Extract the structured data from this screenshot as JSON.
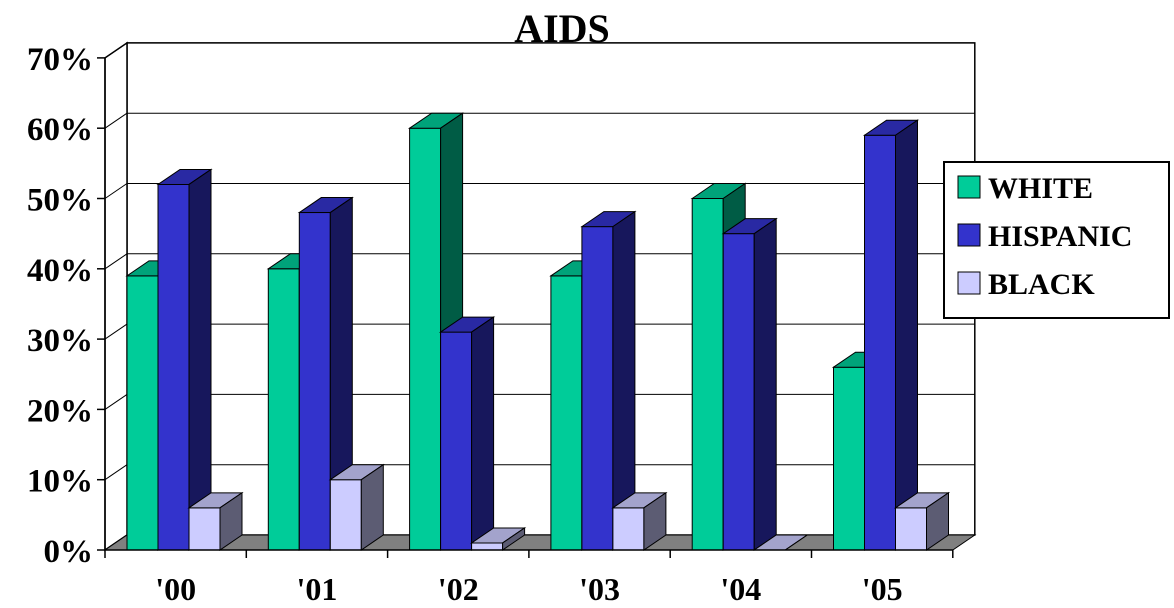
{
  "chart_data": {
    "type": "bar",
    "title": "AIDS",
    "xlabel": "",
    "ylabel": "",
    "categories": [
      "'00",
      "'01",
      "'02",
      "'03",
      "'04",
      "'05"
    ],
    "series": [
      {
        "name": "WHITE",
        "values": [
          39,
          40,
          60,
          39,
          50,
          26
        ],
        "color": "#00CC99"
      },
      {
        "name": "HISPANIC",
        "values": [
          52,
          48,
          31,
          46,
          45,
          59
        ],
        "color": "#3333CC"
      },
      {
        "name": "BLACK",
        "values": [
          6,
          10,
          1,
          6,
          0,
          6
        ],
        "color": "#CCCCFF"
      }
    ],
    "ylim": [
      0,
      70
    ],
    "yticks": [
      "0%",
      "10%",
      "20%",
      "30%",
      "40%",
      "50%",
      "60%",
      "70%"
    ],
    "grid": true,
    "legend_position": "right",
    "style": "3d-clustered-column"
  }
}
